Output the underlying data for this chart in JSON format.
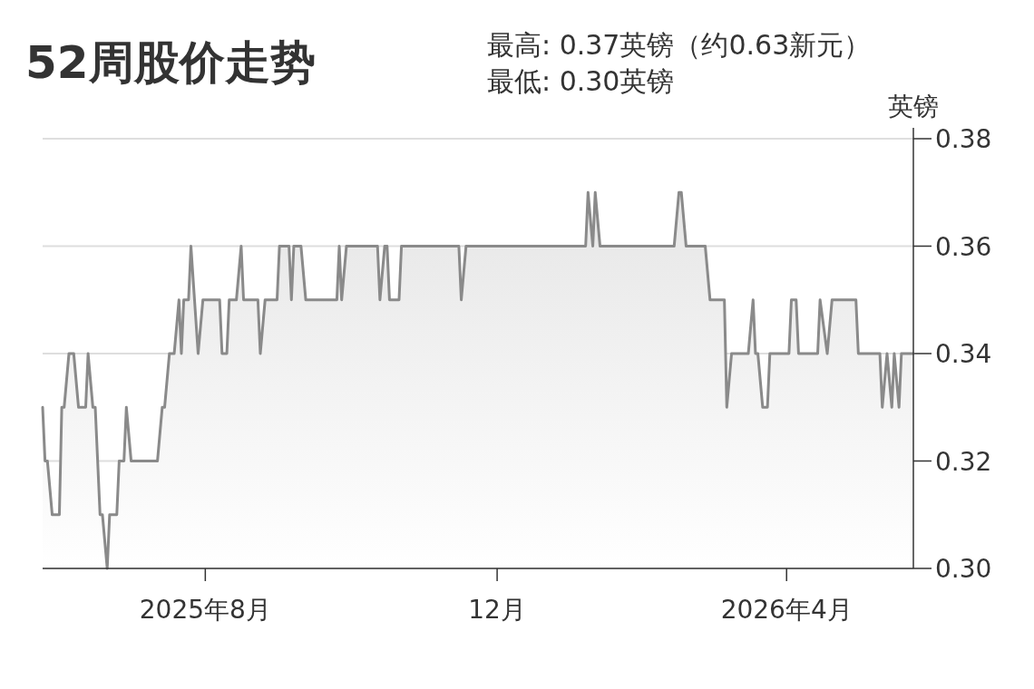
{
  "chart_data": {
    "type": "area",
    "title": "52周股价走势",
    "annotations": [
      "最高: 0.37英镑（约0.63新元）",
      "最低: 0.30英镑"
    ],
    "ylabel": "英镑",
    "x": [
      "2025-05-25",
      "2025-05-26",
      "2025-05-27",
      "2025-05-29",
      "2025-06-01",
      "2025-06-02",
      "2025-06-03",
      "2025-06-05",
      "2025-06-07",
      "2025-06-09",
      "2025-06-12",
      "2025-06-13",
      "2025-06-15",
      "2025-06-16",
      "2025-06-18",
      "2025-06-19",
      "2025-06-21",
      "2025-06-22",
      "2025-06-25",
      "2025-06-26",
      "2025-06-28",
      "2025-06-29",
      "2025-07-01",
      "2025-07-12",
      "2025-07-14",
      "2025-07-15",
      "2025-07-17",
      "2025-07-19",
      "2025-07-21",
      "2025-07-22",
      "2025-07-23",
      "2025-07-25",
      "2025-07-26",
      "2025-07-29",
      "2025-07-31",
      "2025-08-07",
      "2025-08-08",
      "2025-08-10",
      "2025-08-11",
      "2025-08-14",
      "2025-08-16",
      "2025-08-17",
      "2025-08-23",
      "2025-08-24",
      "2025-08-26",
      "2025-08-31",
      "2025-09-01",
      "2025-09-05",
      "2025-09-06",
      "2025-09-07",
      "2025-09-10",
      "2025-09-12",
      "2025-09-22",
      "2025-09-25",
      "2025-09-26",
      "2025-09-27",
      "2025-09-29",
      "2025-10-12",
      "2025-10-13",
      "2025-10-15",
      "2025-10-16",
      "2025-10-17",
      "2025-10-21",
      "2025-10-22",
      "2025-11-15",
      "2025-11-16",
      "2025-11-18",
      "2026-01-07",
      "2026-01-08",
      "2026-01-10",
      "2026-01-11",
      "2026-01-13",
      "2026-02-13",
      "2026-02-15",
      "2026-02-16",
      "2026-02-18",
      "2026-02-26",
      "2026-02-28",
      "2026-03-06",
      "2026-03-07",
      "2026-03-09",
      "2026-03-16",
      "2026-03-18",
      "2026-03-19",
      "2026-03-20",
      "2026-03-22",
      "2026-03-24",
      "2026-03-25",
      "2026-04-02",
      "2026-04-03",
      "2026-04-05",
      "2026-04-06",
      "2026-04-14",
      "2026-04-15",
      "2026-04-18",
      "2026-04-20",
      "2026-04-30",
      "2026-05-01",
      "2026-05-10",
      "2026-05-11",
      "2026-05-13",
      "2026-05-15",
      "2026-05-16",
      "2026-05-18",
      "2026-05-19",
      "2026-05-24"
    ],
    "values": [
      0.33,
      0.32,
      0.32,
      0.31,
      0.31,
      0.33,
      0.33,
      0.34,
      0.34,
      0.33,
      0.33,
      0.34,
      0.33,
      0.33,
      0.31,
      0.31,
      0.3,
      0.31,
      0.31,
      0.32,
      0.32,
      0.33,
      0.32,
      0.32,
      0.33,
      0.33,
      0.34,
      0.34,
      0.35,
      0.34,
      0.35,
      0.35,
      0.36,
      0.34,
      0.35,
      0.35,
      0.34,
      0.34,
      0.35,
      0.35,
      0.36,
      0.35,
      0.35,
      0.34,
      0.35,
      0.35,
      0.36,
      0.36,
      0.35,
      0.36,
      0.36,
      0.35,
      0.35,
      0.35,
      0.36,
      0.35,
      0.36,
      0.36,
      0.35,
      0.36,
      0.36,
      0.35,
      0.35,
      0.36,
      0.36,
      0.35,
      0.36,
      0.36,
      0.37,
      0.36,
      0.37,
      0.36,
      0.36,
      0.37,
      0.37,
      0.36,
      0.36,
      0.35,
      0.35,
      0.33,
      0.34,
      0.34,
      0.35,
      0.34,
      0.34,
      0.33,
      0.33,
      0.34,
      0.34,
      0.35,
      0.35,
      0.34,
      0.34,
      0.35,
      0.34,
      0.35,
      0.35,
      0.34,
      0.34,
      0.33,
      0.34,
      0.33,
      0.34,
      0.33,
      0.34,
      0.34
    ],
    "color": "#8a8a8a",
    "xlim": [
      "2025-05-25",
      "2026-05-24"
    ],
    "xticks": [
      {
        "value": "2025-08-01",
        "label": "2025年8月"
      },
      {
        "value": "2025-12-01",
        "label": "12月"
      },
      {
        "value": "2026-04-01",
        "label": "2026年4月"
      }
    ],
    "ylim": [
      0.3,
      0.38
    ],
    "yticks": [
      {
        "value": 0.3,
        "label": "0.30"
      },
      {
        "value": 0.32,
        "label": "0.32"
      },
      {
        "value": 0.34,
        "label": "0.34"
      },
      {
        "value": 0.36,
        "label": "0.36"
      },
      {
        "value": 0.38,
        "label": "0.38"
      }
    ],
    "grid": "y"
  }
}
